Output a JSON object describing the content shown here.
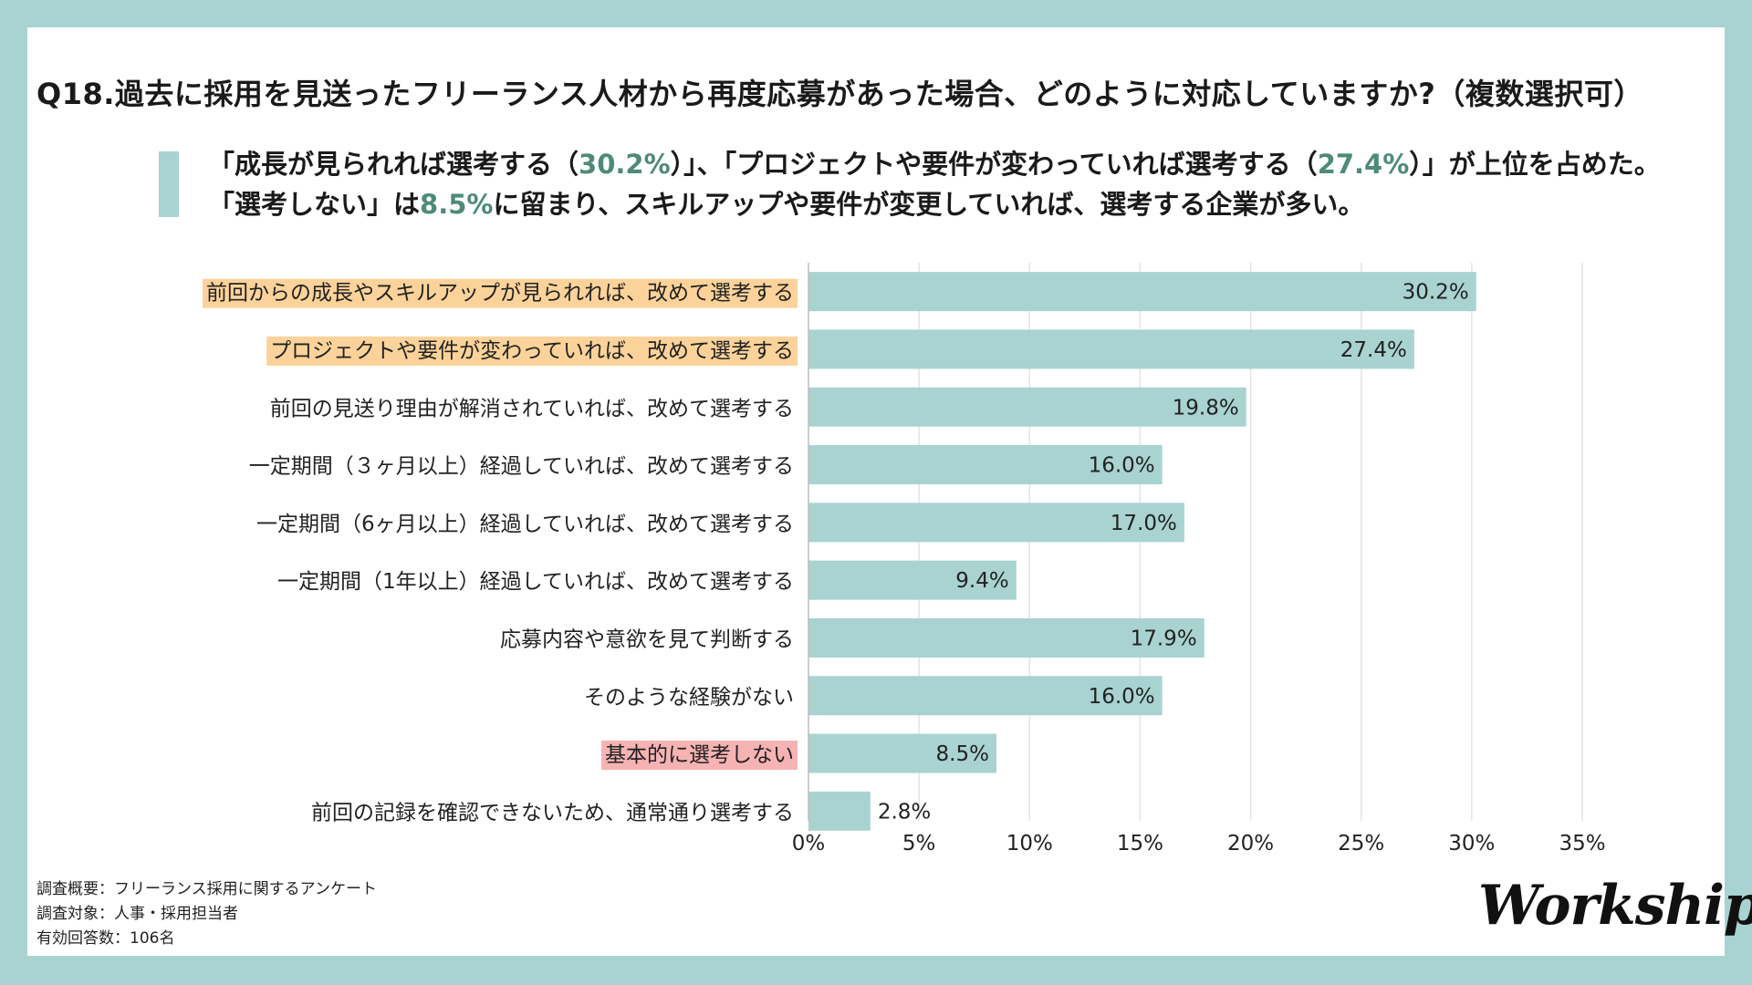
{
  "colors": {
    "bar": "#a8d3d0",
    "highlight_orange": "#fbd39a",
    "highlight_pink": "#f6b3b3",
    "accent_text": "#4e8a79",
    "grid": "#e3e3e3"
  },
  "title": "Q18.過去に採用を見送ったフリーランス人材から再度応募があった場合、どのように対応していますか?（複数選択可）",
  "summary": {
    "s1": "「成長が見られれば選考する（",
    "h1": "30.2%",
    "s2": "）」、「プロジェクトや要件が変わっていれば選考する（",
    "h2": "27.4%",
    "s3": "）」が上位を占めた。「選考しない」は",
    "h3": "8.5%",
    "s4": "に留まり、スキルアップや要件が変更していれば、選考する企業が多い。"
  },
  "chart_data": {
    "type": "bar",
    "orientation": "horizontal",
    "categories": [
      "前回からの成長やスキルアップが見られれば、改めて選考する",
      "プロジェクトや要件が変わっていれば、改めて選考する",
      "前回の見送り理由が解消されていれば、改めて選考する",
      "一定期間（３ヶ月以上）経過していれば、改めて選考する",
      "一定期間（6ヶ月以上）経過していれば、改めて選考する",
      "一定期間（1年以上）経過していれば、改めて選考する",
      "応募内容や意欲を見て判断する",
      "そのような経験がない",
      "基本的に選考しない",
      "前回の記録を確認できないため、通常通り選考する"
    ],
    "values": [
      30.2,
      27.4,
      19.8,
      16.0,
      17.0,
      9.4,
      17.9,
      16.0,
      8.5,
      2.8
    ],
    "value_labels": [
      "30.2%",
      "27.4%",
      "19.8%",
      "16.0%",
      "17.0%",
      "9.4%",
      "17.9%",
      "16.0%",
      "8.5%",
      "2.8%"
    ],
    "label_highlight": [
      "orange",
      "orange",
      "none",
      "none",
      "none",
      "none",
      "none",
      "none",
      "pink",
      "none"
    ],
    "xlim": [
      0,
      35
    ],
    "xticks": [
      0,
      5,
      10,
      15,
      20,
      25,
      30,
      35
    ],
    "xtick_labels": [
      "0%",
      "5%",
      "10%",
      "15%",
      "20%",
      "25%",
      "30%",
      "35%"
    ],
    "grid": true,
    "xlabel": "",
    "ylabel": ""
  },
  "footer": {
    "line1": "調査概要：フリーランス採用に関するアンケート",
    "line2": "調査対象：人事・採用担当者",
    "line3": "有効回答数：106名"
  },
  "logo": "Workship"
}
